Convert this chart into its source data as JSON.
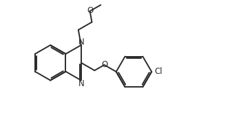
{
  "bg_color": "#ffffff",
  "line_color": "#2a2a2a",
  "line_width": 1.4,
  "font_size": 8.5,
  "fig_width": 3.66,
  "fig_height": 1.74,
  "dpi": 100,
  "xlim": [
    -0.5,
    9.5
  ],
  "ylim": [
    -0.3,
    5.2
  ]
}
